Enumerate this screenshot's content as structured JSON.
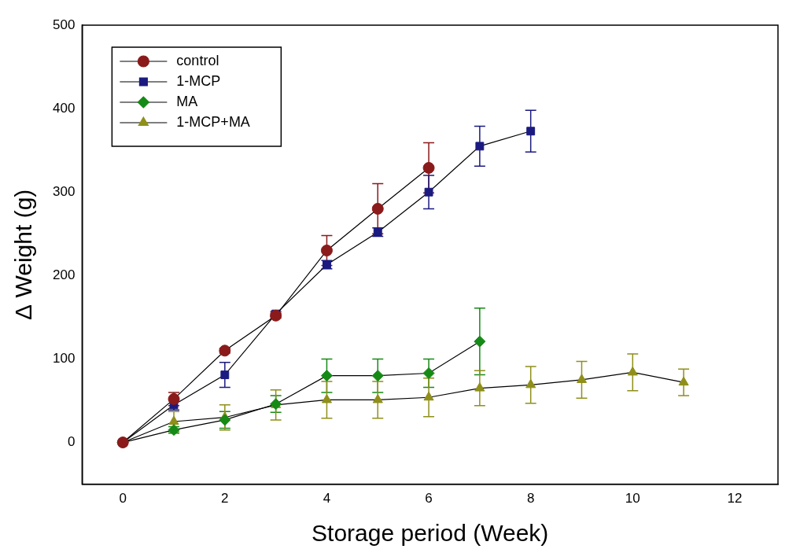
{
  "chart_data": {
    "type": "line",
    "x_label": "Storage period (Week)",
    "y_label": "Δ Weight (g)",
    "xlim": [
      -0.8,
      12.85
    ],
    "xticks": [
      0,
      2,
      4,
      6,
      8,
      10,
      12
    ],
    "ylim": [
      -50,
      500
    ],
    "yticks": [
      0,
      100,
      200,
      300,
      400,
      500
    ],
    "grid": false,
    "legend": "upper left",
    "series": [
      {
        "name": "control",
        "color": "#8b1a1a",
        "marker": "circle",
        "x": [
          0,
          1,
          2,
          3,
          4,
          5,
          6
        ],
        "values": [
          0,
          52,
          110,
          152,
          230,
          280,
          329
        ],
        "errors": [
          0,
          8,
          3,
          3,
          18,
          30,
          30
        ]
      },
      {
        "name": "1-MCP",
        "color": "#1a1a80",
        "marker": "square",
        "x": [
          0,
          1,
          2,
          3,
          4,
          5,
          6,
          7,
          8
        ],
        "values": [
          0,
          45,
          81,
          154,
          213,
          252,
          300,
          355,
          373
        ],
        "errors": [
          0,
          6,
          15,
          3,
          5,
          5,
          20,
          24,
          25
        ]
      },
      {
        "name": "MA",
        "color": "#168a16",
        "marker": "diamond",
        "x": [
          0,
          1,
          2,
          3,
          4,
          5,
          6,
          7
        ],
        "values": [
          0,
          15,
          27,
          46,
          80,
          80,
          83,
          121
        ],
        "errors": [
          0,
          4,
          10,
          10,
          20,
          20,
          17,
          40
        ]
      },
      {
        "name": "1-MCP+MA",
        "color": "#8f8f1a",
        "marker": "triangle",
        "x": [
          0,
          1,
          2,
          3,
          4,
          5,
          6,
          7,
          8,
          9,
          10,
          11
        ],
        "values": [
          0,
          25,
          30,
          45,
          51,
          51,
          54,
          65,
          69,
          75,
          84,
          72
        ],
        "errors": [
          0,
          12,
          15,
          18,
          22,
          22,
          23,
          21,
          22,
          22,
          22,
          16
        ]
      }
    ]
  }
}
